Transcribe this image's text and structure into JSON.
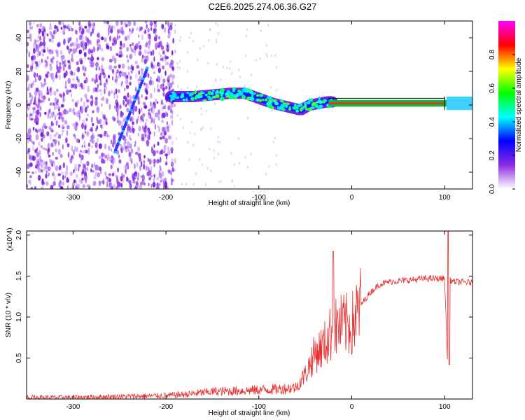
{
  "title": "C2E6.2025.274.06.36.G27",
  "chart_data": [
    {
      "type": "heatmap",
      "xlabel": "Height of straight line (km)",
      "ylabel": "Frequency (Hz)",
      "xlim": [
        -350,
        130
      ],
      "ylim": [
        -50,
        50
      ],
      "xticks": [
        -300,
        -200,
        -100,
        0,
        100
      ],
      "yticks": [
        -40,
        -20,
        0,
        20,
        40
      ],
      "colorbar": {
        "label": "Normalized spectral amplitude",
        "range": [
          0,
          1
        ],
        "ticks": [
          "0.0",
          "0.2",
          "0.4",
          "0.6",
          "0.8"
        ],
        "colors": [
          "#ffffff",
          "#8a2be2",
          "#0000ff",
          "#00ffff",
          "#00ff00",
          "#ffff00",
          "#ff0000",
          "#ff00ff"
        ]
      },
      "features": {
        "noise_region_x": [
          -350,
          -190
        ],
        "diagonal_trace": {
          "x": [
            -255,
            -220
          ],
          "y": [
            -28,
            22
          ]
        },
        "carrier_track": [
          {
            "x": -195,
            "y": 5
          },
          {
            "x": -170,
            "y": 5
          },
          {
            "x": -150,
            "y": 6
          },
          {
            "x": -130,
            "y": 7
          },
          {
            "x": -115,
            "y": 7
          },
          {
            "x": -100,
            "y": 4
          },
          {
            "x": -85,
            "y": 1
          },
          {
            "x": -70,
            "y": -1
          },
          {
            "x": -55,
            "y": -3
          },
          {
            "x": -45,
            "y": 0
          },
          {
            "x": -35,
            "y": 1
          },
          {
            "x": -25,
            "y": 2
          },
          {
            "x": 0,
            "y": 1
          },
          {
            "x": 100,
            "y": 1
          },
          {
            "x": 130,
            "y": 1
          }
        ]
      }
    },
    {
      "type": "line",
      "xlabel": "Height of straight line (km)",
      "ylabel": "SNR (10 * v/v)",
      "y_multiplier": "(x10^4)",
      "xlim": [
        -350,
        130
      ],
      "ylim": [
        0,
        2.05
      ],
      "xticks": [
        -300,
        -200,
        -100,
        0,
        100
      ],
      "yticks": [
        "0.5",
        "1.0",
        "1.5",
        "2.0"
      ],
      "color": "#e83030",
      "series": [
        {
          "name": "SNR",
          "x": [
            -350,
            -300,
            -250,
            -200,
            -175,
            -150,
            -120,
            -100,
            -80,
            -60,
            -50,
            -40,
            -30,
            -20,
            -10,
            0,
            10,
            20,
            30,
            40,
            60,
            80,
            100,
            103,
            106,
            110,
            130
          ],
          "y": [
            0.02,
            0.02,
            0.03,
            0.04,
            0.06,
            0.09,
            0.1,
            0.11,
            0.12,
            0.14,
            0.3,
            0.55,
            0.65,
            0.85,
            0.9,
            0.9,
            1.15,
            1.3,
            1.4,
            1.43,
            1.45,
            1.47,
            1.47,
            0.5,
            1.45,
            1.43,
            1.42
          ]
        }
      ]
    }
  ]
}
